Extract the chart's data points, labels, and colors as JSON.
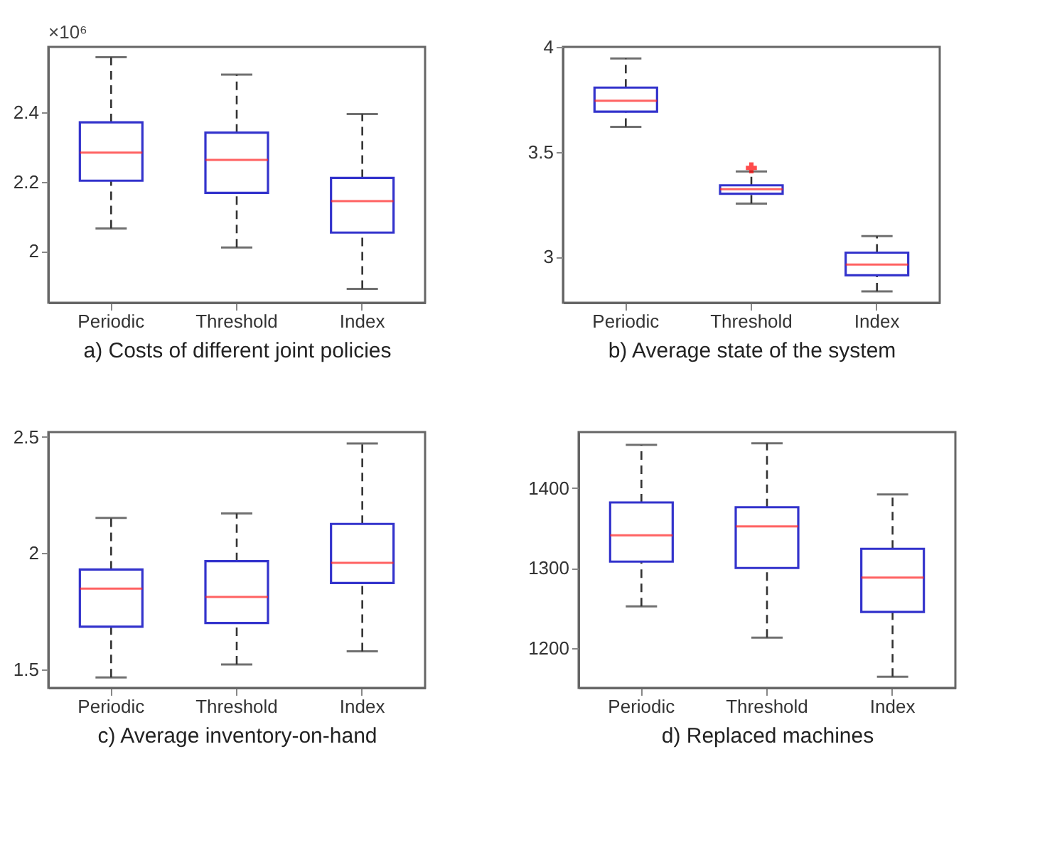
{
  "chart_data": [
    {
      "type": "box",
      "xlabel": "a) Costs of different joint policies",
      "annotations": [
        "×10⁶"
      ],
      "categories": [
        "Periodic",
        "Threshold",
        "Index"
      ],
      "ylim": [
        1.85,
        2.59
      ],
      "yticks": [
        2,
        2.2,
        2.4
      ],
      "series": [
        {
          "color": "#3333cc",
          "boxes": [
            {
              "low": 2.065,
              "q1": 2.203,
              "median": 2.284,
              "q3": 2.372,
              "high": 2.56
            },
            {
              "low": 2.01,
              "q1": 2.168,
              "median": 2.263,
              "q3": 2.342,
              "high": 2.51
            },
            {
              "low": 1.89,
              "q1": 2.053,
              "median": 2.144,
              "q3": 2.211,
              "high": 2.396
            }
          ]
        }
      ]
    },
    {
      "type": "box",
      "xlabel": "b) Average state of the system",
      "categories": [
        "Periodic",
        "Threshold",
        "Index"
      ],
      "ylim": [
        2.78,
        4
      ],
      "yticks": [
        3,
        3.5,
        4
      ],
      "series": [
        {
          "color": "#3333cc",
          "boxes": [
            {
              "low": 3.619,
              "q1": 3.691,
              "median": 3.743,
              "q3": 3.806,
              "high": 3.945
            },
            {
              "low": 3.253,
              "q1": 3.3,
              "median": 3.321,
              "q3": 3.34,
              "high": 3.406,
              "outliers": [
                3.423
              ]
            },
            {
              "low": 2.834,
              "q1": 2.911,
              "median": 2.962,
              "q3": 3.019,
              "high": 3.098
            }
          ]
        }
      ]
    },
    {
      "type": "box",
      "xlabel": "c) Average inventory-on-hand",
      "categories": [
        "Periodic",
        "Threshold",
        "Index"
      ],
      "ylim": [
        1.42,
        2.52
      ],
      "yticks": [
        1.5,
        2,
        2.5
      ],
      "series": [
        {
          "color": "#3333cc",
          "boxes": [
            {
              "low": 1.465,
              "q1": 1.683,
              "median": 1.847,
              "q3": 1.929,
              "high": 2.151
            },
            {
              "low": 1.521,
              "q1": 1.699,
              "median": 1.811,
              "q3": 1.965,
              "high": 2.17
            },
            {
              "low": 1.577,
              "q1": 1.871,
              "median": 1.958,
              "q3": 2.125,
              "high": 2.471
            }
          ]
        }
      ]
    },
    {
      "type": "box",
      "xlabel": "d) Replaced machines",
      "categories": [
        "Periodic",
        "Threshold",
        "Index"
      ],
      "ylim": [
        1150,
        1470
      ],
      "yticks": [
        1200,
        1300,
        1400
      ],
      "series": [
        {
          "color": "#3333cc",
          "boxes": [
            {
              "low": 1252,
              "q1": 1308,
              "median": 1341,
              "q3": 1382,
              "high": 1454
            },
            {
              "low": 1213,
              "q1": 1300,
              "median": 1352,
              "q3": 1376,
              "high": 1456
            },
            {
              "low": 1164,
              "q1": 1245,
              "median": 1288,
              "q3": 1324,
              "high": 1392
            }
          ]
        }
      ]
    }
  ]
}
